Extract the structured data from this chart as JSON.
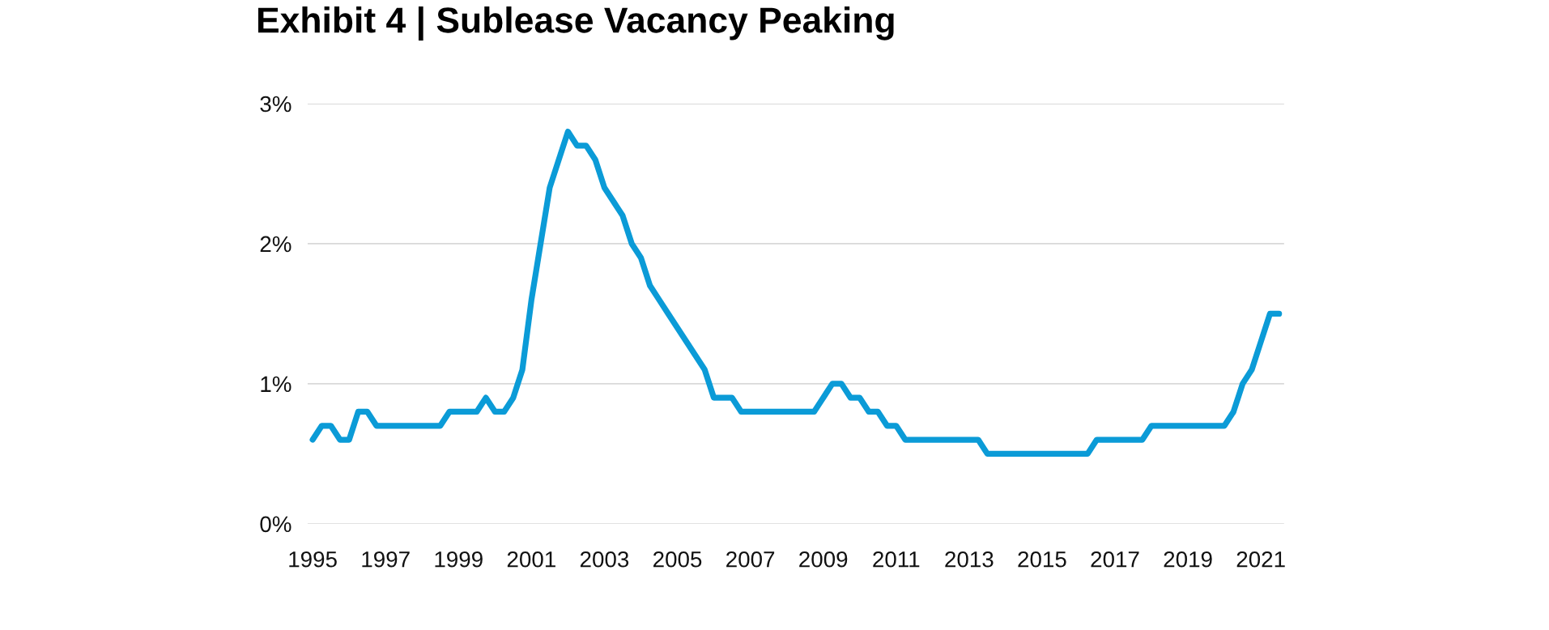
{
  "chart_data": {
    "type": "line",
    "title": "Exhibit 4 | Sublease Vacancy Peaking",
    "categories": [
      "1995",
      null,
      null,
      null,
      null,
      null,
      null,
      null,
      "1997",
      null,
      null,
      null,
      null,
      null,
      null,
      null,
      "1999",
      null,
      null,
      null,
      null,
      null,
      null,
      null,
      "2001",
      null,
      null,
      null,
      null,
      null,
      null,
      null,
      "2003",
      null,
      null,
      null,
      null,
      null,
      null,
      null,
      "2005",
      null,
      null,
      null,
      null,
      null,
      null,
      null,
      "2007",
      null,
      null,
      null,
      null,
      null,
      null,
      null,
      "2009",
      null,
      null,
      null,
      null,
      null,
      null,
      null,
      "2011",
      null,
      null,
      null,
      null,
      null,
      null,
      null,
      "2013",
      null,
      null,
      null,
      null,
      null,
      null,
      null,
      "2015",
      null,
      null,
      null,
      null,
      null,
      null,
      null,
      "2017",
      null,
      null,
      null,
      null,
      null,
      null,
      null,
      "2019",
      null,
      null,
      null,
      null,
      null,
      null,
      null,
      "2021",
      null,
      null
    ],
    "series": [
      {
        "color": "#0b9bd7",
        "values": [
          0.6,
          0.7,
          0.7,
          0.6,
          0.6,
          0.8,
          0.8,
          0.7,
          0.7,
          0.7,
          0.7,
          0.7,
          0.7,
          0.7,
          0.7,
          0.8,
          0.8,
          0.8,
          0.8,
          0.9,
          0.8,
          0.8,
          0.9,
          1.1,
          1.6,
          2.0,
          2.4,
          2.6,
          2.8,
          2.7,
          2.7,
          2.6,
          2.4,
          2.3,
          2.2,
          2.0,
          1.9,
          1.7,
          1.6,
          1.5,
          1.4,
          1.3,
          1.2,
          1.1,
          0.9,
          0.9,
          0.9,
          0.8,
          0.8,
          0.8,
          0.8,
          0.8,
          0.8,
          0.8,
          0.8,
          0.8,
          0.9,
          1.0,
          1.0,
          0.9,
          0.9,
          0.8,
          0.8,
          0.7,
          0.7,
          0.6,
          0.6,
          0.6,
          0.6,
          0.6,
          0.6,
          0.6,
          0.6,
          0.6,
          0.5,
          0.5,
          0.5,
          0.5,
          0.5,
          0.5,
          0.5,
          0.5,
          0.5,
          0.5,
          0.5,
          0.5,
          0.6,
          0.6,
          0.6,
          0.6,
          0.6,
          0.6,
          0.7,
          0.7,
          0.7,
          0.7,
          0.7,
          0.7,
          0.7,
          0.7,
          0.7,
          0.8,
          1.0,
          1.1,
          1.3,
          1.5,
          1.5
        ]
      }
    ],
    "ylim": [
      0,
      3
    ],
    "yticks": [
      {
        "value": 0,
        "label": "0%"
      },
      {
        "value": 1,
        "label": "1%"
      },
      {
        "value": 2,
        "label": "2%"
      },
      {
        "value": 3,
        "label": "3%"
      }
    ],
    "grid": "y",
    "line_style": "solid"
  }
}
